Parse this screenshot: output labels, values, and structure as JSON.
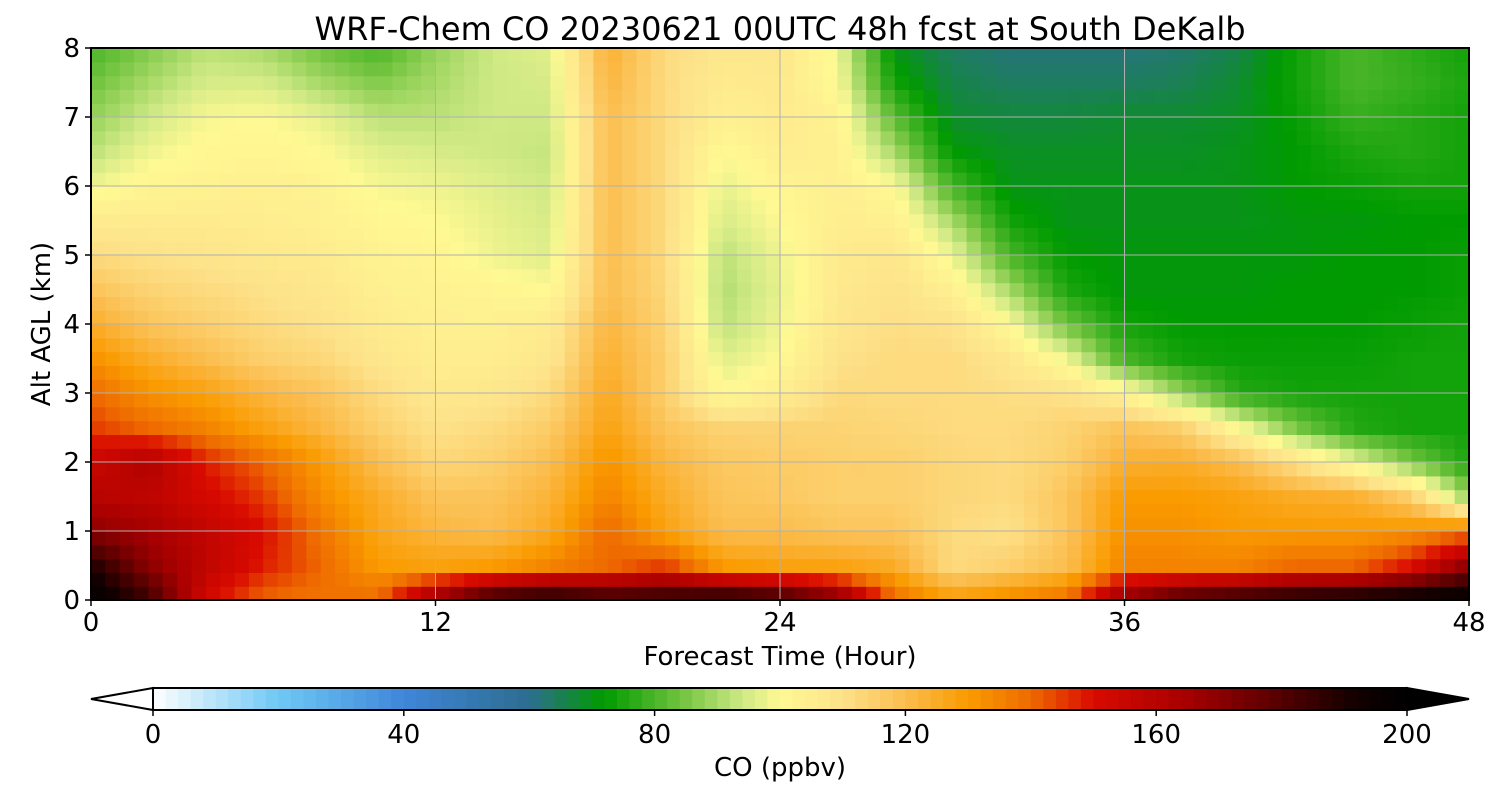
{
  "chart_data": {
    "type": "heatmap",
    "title": "WRF-Chem CO  20230621 00UTC 48h fcst at South DeKalb",
    "xlabel": "Forecast Time (Hour)",
    "ylabel": "Alt AGL (km)",
    "xlim": [
      0,
      48
    ],
    "ylim": [
      0,
      8
    ],
    "x_ticks": [
      0,
      12,
      24,
      36,
      48
    ],
    "y_ticks": [
      0,
      1,
      2,
      3,
      4,
      5,
      6,
      7,
      8
    ],
    "grid": true,
    "colorbar": {
      "label": "CO  (ppbv)",
      "range": [
        0,
        200
      ],
      "ticks": [
        0,
        40,
        80,
        120,
        160,
        200
      ],
      "extend": "both",
      "stops": [
        {
          "v": 0,
          "color": "#ffffff"
        },
        {
          "v": 20,
          "color": "#6fc8f4"
        },
        {
          "v": 40,
          "color": "#3f86d9"
        },
        {
          "v": 60,
          "color": "#2d6d90"
        },
        {
          "v": 72,
          "color": "#009b00"
        },
        {
          "v": 84,
          "color": "#6ec23c"
        },
        {
          "v": 94,
          "color": "#cfe985"
        },
        {
          "v": 100,
          "color": "#fff993"
        },
        {
          "v": 110,
          "color": "#fde28a"
        },
        {
          "v": 120,
          "color": "#fbbd4e"
        },
        {
          "v": 130,
          "color": "#fa9b00"
        },
        {
          "v": 140,
          "color": "#ee6a00"
        },
        {
          "v": 150,
          "color": "#d90a00"
        },
        {
          "v": 165,
          "color": "#a60000"
        },
        {
          "v": 180,
          "color": "#530000"
        },
        {
          "v": 192,
          "color": "#120000"
        },
        {
          "v": 200,
          "color": "#000000"
        }
      ]
    },
    "x": [
      0,
      2,
      4,
      6,
      8,
      10,
      12,
      14,
      16,
      18,
      20,
      22,
      24,
      26,
      28,
      30,
      32,
      34,
      36,
      38,
      40,
      42,
      44,
      46,
      48
    ],
    "y": [
      0,
      0.5,
      1,
      1.5,
      2,
      2.5,
      3,
      3.5,
      4,
      4.5,
      5,
      5.5,
      6,
      6.5,
      7,
      7.5,
      8
    ],
    "z": [
      [
        200,
        185,
        152,
        140,
        138,
        140,
        170,
        190,
        195,
        188,
        190,
        195,
        190,
        175,
        140,
        130,
        135,
        140,
        172,
        185,
        190,
        195,
        198,
        200,
        200
      ],
      [
        190,
        170,
        158,
        148,
        140,
        130,
        128,
        130,
        135,
        140,
        145,
        130,
        128,
        128,
        125,
        112,
        115,
        120,
        135,
        135,
        135,
        140,
        140,
        150,
        170
      ],
      [
        170,
        165,
        157,
        150,
        138,
        127,
        122,
        120,
        126,
        140,
        128,
        120,
        120,
        118,
        118,
        112,
        110,
        118,
        132,
        132,
        130,
        130,
        130,
        132,
        138
      ],
      [
        160,
        158,
        152,
        145,
        133,
        125,
        118,
        118,
        123,
        135,
        125,
        118,
        117,
        115,
        115,
        113,
        112,
        118,
        130,
        130,
        128,
        125,
        124,
        115,
        88
      ],
      [
        155,
        162,
        148,
        140,
        130,
        120,
        113,
        115,
        120,
        132,
        122,
        117,
        116,
        115,
        115,
        113,
        112,
        115,
        124,
        125,
        120,
        110,
        98,
        85,
        75
      ],
      [
        145,
        140,
        135,
        128,
        122,
        115,
        110,
        112,
        116,
        128,
        118,
        114,
        114,
        114,
        113,
        112,
        112,
        114,
        118,
        115,
        100,
        85,
        76,
        74,
        74
      ],
      [
        140,
        132,
        128,
        122,
        118,
        112,
        107,
        108,
        112,
        126,
        115,
        100,
        105,
        112,
        112,
        112,
        111,
        110,
        103,
        88,
        76,
        74,
        74,
        74,
        74
      ],
      [
        132,
        125,
        120,
        115,
        113,
        108,
        105,
        105,
        108,
        124,
        115,
        96,
        100,
        110,
        112,
        112,
        108,
        98,
        80,
        74,
        73,
        73,
        73,
        74,
        74
      ],
      [
        125,
        118,
        115,
        112,
        110,
        106,
        104,
        104,
        106,
        122,
        114,
        92,
        98,
        108,
        111,
        110,
        100,
        84,
        74,
        72,
        72,
        72,
        72,
        73,
        74
      ],
      [
        118,
        114,
        112,
        110,
        108,
        104,
        103,
        102,
        100,
        120,
        113,
        91,
        97,
        107,
        110,
        104,
        90,
        75,
        71,
        71,
        71,
        72,
        72,
        72,
        73
      ],
      [
        112,
        110,
        109,
        107,
        106,
        103,
        102,
        98,
        96,
        120,
        112,
        92,
        98,
        106,
        108,
        98,
        80,
        72,
        71,
        71,
        71,
        71,
        72,
        72,
        73
      ],
      [
        106,
        106,
        106,
        105,
        104,
        101,
        100,
        97,
        95,
        120,
        112,
        95,
        100,
        105,
        104,
        90,
        74,
        70,
        70,
        70,
        70,
        71,
        71,
        72,
        72
      ],
      [
        98,
        102,
        103,
        104,
        103,
        99,
        98,
        96,
        94,
        120,
        112,
        97,
        102,
        104,
        100,
        80,
        70,
        70,
        70,
        70,
        70,
        72,
        73,
        74,
        74
      ],
      [
        92,
        98,
        101,
        102,
        100,
        96,
        95,
        94,
        93,
        120,
        112,
        100,
        105,
        104,
        90,
        72,
        69,
        69,
        69,
        69,
        70,
        72,
        75,
        76,
        74
      ],
      [
        88,
        94,
        99,
        100,
        97,
        92,
        92,
        94,
        94,
        120,
        112,
        104,
        106,
        103,
        82,
        68,
        67,
        67,
        68,
        68,
        69,
        73,
        78,
        76,
        74
      ],
      [
        84,
        90,
        95,
        95,
        90,
        86,
        90,
        94,
        95,
        122,
        112,
        106,
        107,
        100,
        74,
        66,
        64,
        64,
        64,
        65,
        68,
        74,
        80,
        78,
        75
      ],
      [
        80,
        86,
        92,
        90,
        84,
        80,
        88,
        94,
        96,
        124,
        112,
        108,
        108,
        98,
        70,
        64,
        62,
        62,
        62,
        63,
        66,
        74,
        80,
        77,
        74
      ]
    ]
  }
}
